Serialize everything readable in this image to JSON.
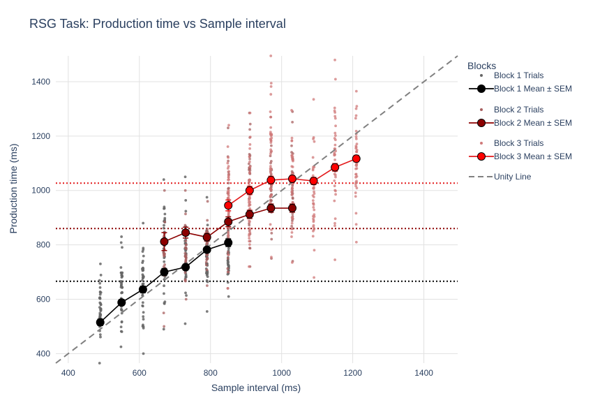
{
  "chart_data": {
    "type": "scatter",
    "title": "RSG Task: Production time vs Sample interval",
    "xlabel": "Sample interval (ms)",
    "ylabel": "Production time (ms)",
    "xlim": [
      365,
      1495
    ],
    "ylim": [
      365,
      1495
    ],
    "xticks": [
      400,
      600,
      800,
      1000,
      1200,
      1400
    ],
    "yticks": [
      400,
      600,
      800,
      1000,
      1200,
      1400
    ],
    "grid": true,
    "legend": {
      "title": "Blocks",
      "placement": "right",
      "entries": [
        {
          "label": "Block 1 Trials",
          "kind": "dot",
          "color": "#666666"
        },
        {
          "label": "Block 1 Mean ± SEM",
          "kind": "line-marker",
          "color": "#000000",
          "fill": "#000000"
        },
        {
          "label": "Block 2 Trials",
          "kind": "dot",
          "color": "#a86060"
        },
        {
          "label": "Block 2 Mean ± SEM",
          "kind": "line-marker",
          "color": "#8b0000",
          "fill": "#8b0000"
        },
        {
          "label": "Block 3 Trials",
          "kind": "dot",
          "color": "#d07a7a"
        },
        {
          "label": "Block 3 Mean ± SEM",
          "kind": "line-marker",
          "color": "#e31a1c",
          "fill": "#ff0000"
        },
        {
          "label": "Unity Line",
          "kind": "dash",
          "color": "#808080"
        }
      ]
    },
    "unity_line": {
      "name": "Unity Line",
      "color": "#808080"
    },
    "mean_lines": [
      {
        "y": 666,
        "color": "#000000"
      },
      {
        "y": 860,
        "color": "#8b0000"
      },
      {
        "y": 1027,
        "color": "#e31a1c"
      }
    ],
    "series": [
      {
        "name": "Block 1 Mean ± SEM",
        "color": "#000000",
        "fill": "#000000",
        "x": [
          490,
          550,
          610,
          670,
          730,
          790,
          850
        ],
        "y": [
          515,
          588,
          636,
          700,
          718,
          782,
          808
        ],
        "sem": [
          12,
          11,
          12,
          13,
          11,
          10,
          14
        ]
      },
      {
        "name": "Block 2 Mean ± SEM",
        "color": "#8b0000",
        "fill": "#8b0000",
        "x": [
          670,
          730,
          790,
          850,
          910,
          970,
          1030
        ],
        "y": [
          812,
          845,
          828,
          885,
          912,
          935,
          935
        ],
        "sem": [
          33,
          20,
          14,
          18,
          15,
          15,
          15
        ]
      },
      {
        "name": "Block 3 Mean ± SEM",
        "color": "#e31a1c",
        "fill": "#ff0000",
        "x": [
          850,
          910,
          970,
          1030,
          1090,
          1150,
          1210
        ],
        "y": [
          945,
          1000,
          1038,
          1043,
          1035,
          1085,
          1117
        ],
        "sem": [
          20,
          15,
          14,
          12,
          13,
          14,
          12
        ]
      }
    ],
    "trial_series": [
      {
        "name": "Block 1 Trials",
        "color": "#666666",
        "opacity": 0.85,
        "columns": [
          {
            "x": 490,
            "min": 360,
            "max": 730,
            "n": 42,
            "mean": 515
          },
          {
            "x": 550,
            "min": 425,
            "max": 830,
            "n": 42,
            "mean": 588
          },
          {
            "x": 610,
            "min": 400,
            "max": 880,
            "n": 42,
            "mean": 636
          },
          {
            "x": 670,
            "min": 490,
            "max": 1040,
            "n": 42,
            "mean": 700
          },
          {
            "x": 730,
            "min": 510,
            "max": 1050,
            "n": 42,
            "mean": 718
          },
          {
            "x": 790,
            "min": 555,
            "max": 975,
            "n": 42,
            "mean": 782
          },
          {
            "x": 850,
            "min": 610,
            "max": 900,
            "n": 30,
            "mean": 808
          }
        ]
      },
      {
        "name": "Block 2 Trials",
        "color": "#a86060",
        "opacity": 0.75,
        "columns": [
          {
            "x": 670,
            "min": 500,
            "max": 1000,
            "n": 30,
            "mean": 812
          },
          {
            "x": 730,
            "min": 600,
            "max": 1000,
            "n": 30,
            "mean": 845
          },
          {
            "x": 790,
            "min": 650,
            "max": 960,
            "n": 30,
            "mean": 828
          },
          {
            "x": 850,
            "min": 640,
            "max": 1230,
            "n": 40,
            "mean": 885
          },
          {
            "x": 910,
            "min": 720,
            "max": 1285,
            "n": 40,
            "mean": 912
          },
          {
            "x": 970,
            "min": 750,
            "max": 1270,
            "n": 40,
            "mean": 935
          },
          {
            "x": 1030,
            "min": 740,
            "max": 1290,
            "n": 40,
            "mean": 935
          }
        ]
      },
      {
        "name": "Block 3 Trials",
        "color": "#d07a7a",
        "opacity": 0.75,
        "columns": [
          {
            "x": 850,
            "min": 640,
            "max": 1240,
            "n": 40,
            "mean": 945
          },
          {
            "x": 910,
            "min": 720,
            "max": 1285,
            "n": 40,
            "mean": 1000
          },
          {
            "x": 970,
            "min": 755,
            "max": 1495,
            "n": 40,
            "mean": 1038
          },
          {
            "x": 1030,
            "min": 735,
            "max": 1295,
            "n": 40,
            "mean": 1043
          },
          {
            "x": 1090,
            "min": 680,
            "max": 1335,
            "n": 40,
            "mean": 1035
          },
          {
            "x": 1150,
            "min": 745,
            "max": 1480,
            "n": 40,
            "mean": 1085
          },
          {
            "x": 1210,
            "min": 810,
            "max": 1365,
            "n": 40,
            "mean": 1117
          }
        ]
      }
    ]
  }
}
